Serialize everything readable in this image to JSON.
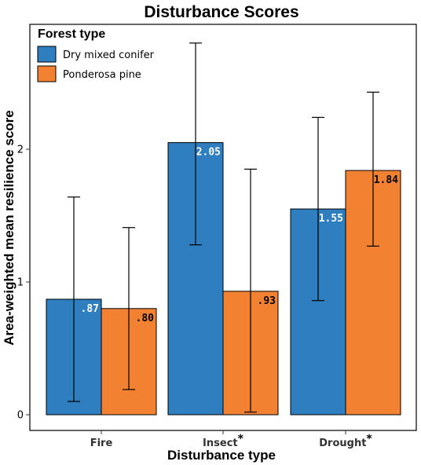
{
  "chart_data": {
    "type": "bar",
    "title": "Disturbance Scores",
    "xlabel": "Disturbance type",
    "ylabel": "Area-weighted mean resilience score",
    "categories": [
      "Fire",
      "Insect",
      "Drought"
    ],
    "category_marks": [
      "",
      "*",
      "*"
    ],
    "ylim": [
      0,
      2.85
    ],
    "yticks": [
      0,
      1,
      2
    ],
    "legend": {
      "title": "Forest type",
      "position": "top-left"
    },
    "grid": false,
    "series": [
      {
        "name": "Dry mixed conifer",
        "color": "#2E7EC0",
        "values": [
          0.87,
          2.05,
          1.55
        ],
        "labels": [
          ".87",
          "2.05",
          "1.55"
        ],
        "label_color": "#ffffff",
        "error_low": [
          0.1,
          1.28,
          0.86
        ],
        "error_high": [
          1.64,
          2.8,
          2.24
        ]
      },
      {
        "name": "Ponderosa pine",
        "color": "#F28232",
        "values": [
          0.8,
          0.93,
          1.84
        ],
        "labels": [
          ".80",
          ".93",
          "1.84"
        ],
        "label_color": "#000000",
        "error_low": [
          0.19,
          0.02,
          1.27
        ],
        "error_high": [
          1.41,
          1.85,
          2.43
        ]
      }
    ]
  }
}
